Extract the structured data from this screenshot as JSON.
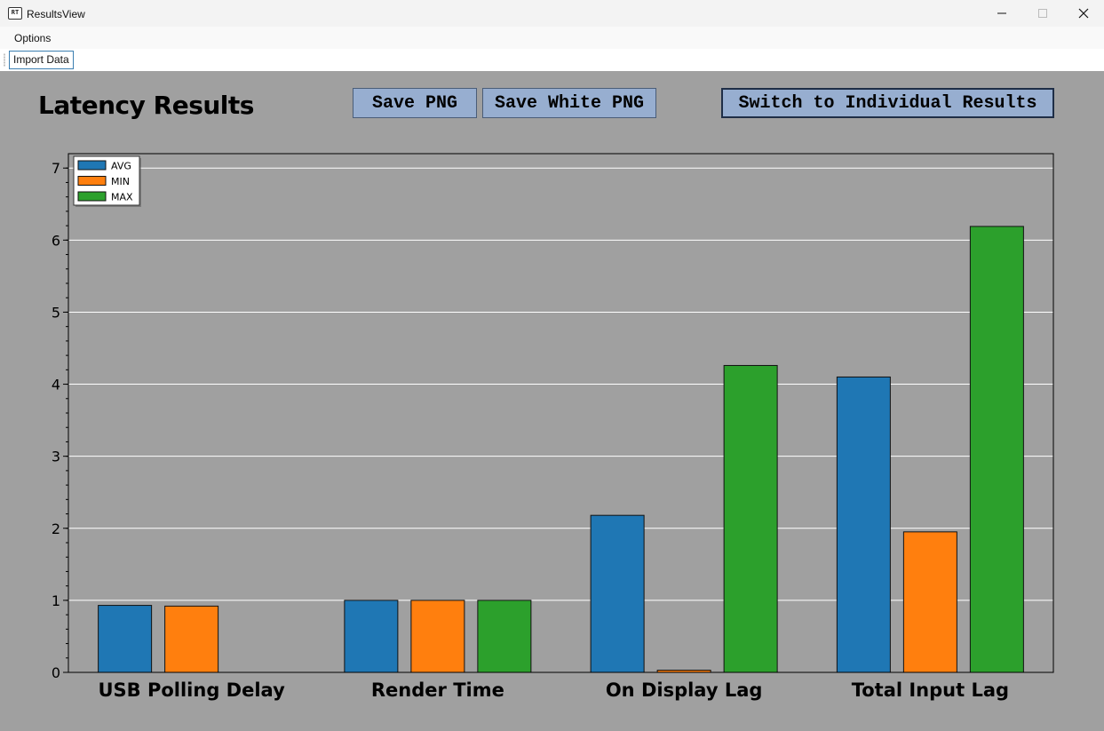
{
  "window": {
    "title": "ResultsView",
    "icon": "results-app-icon",
    "icon_text": "RT"
  },
  "menu": {
    "options_label": "Options"
  },
  "toolbar": {
    "import_label": "Import Data"
  },
  "header": {
    "title": "Latency Results",
    "save_png_label": "Save PNG",
    "save_white_png_label": "Save White PNG",
    "switch_label": "Switch to Individual Results"
  },
  "colors": {
    "background": "#a0a0a0",
    "avg": "#1f77b4",
    "min": "#ff7f0e",
    "max": "#2ca02c",
    "button": "#97aed0"
  },
  "chart_data": {
    "type": "bar",
    "categories": [
      "USB Polling Delay",
      "Render Time",
      "On Display Lag",
      "Total Input Lag"
    ],
    "series": [
      {
        "name": "AVG",
        "values": [
          0.93,
          1.0,
          2.18,
          4.1
        ]
      },
      {
        "name": "MIN",
        "values": [
          0.92,
          1.0,
          0.03,
          1.95
        ]
      },
      {
        "name": "MAX",
        "values": [
          0.0,
          1.0,
          4.26,
          6.19
        ]
      }
    ],
    "yticks": [
      0,
      1,
      2,
      3,
      4,
      5,
      6,
      7
    ],
    "ylim": [
      0,
      7.2
    ],
    "grid": true,
    "legend_position": "top-left"
  }
}
